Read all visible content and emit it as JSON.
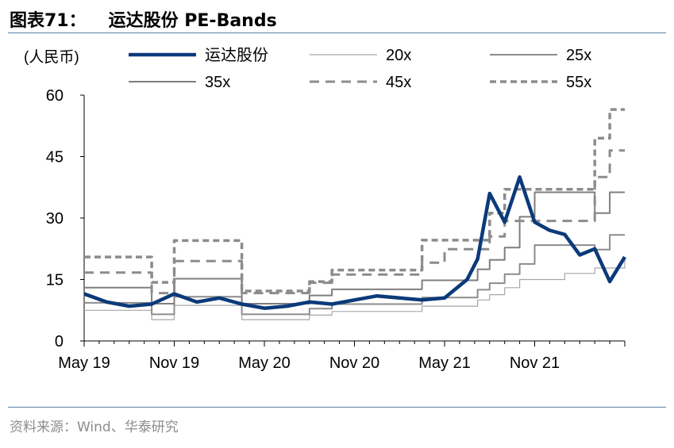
{
  "header": {
    "figure_label": "图表71：",
    "title": "运达股份 PE-Bands"
  },
  "source": "资料来源：Wind、华泰研究",
  "colors": {
    "stock": "#0b3a7a",
    "band_light": "#a6a6a6",
    "band_mid": "#8c8c8c",
    "band_dark": "#7f7f7f",
    "dashed": "#8c8c8c",
    "axis": "#000000",
    "rule": "#5a7fa8"
  },
  "chart_data": {
    "type": "line",
    "unit_label": "(人民币)",
    "y_ticks": [
      "60",
      "45",
      "30",
      "15",
      "0"
    ],
    "ylim": [
      0,
      60
    ],
    "x_ticks": [
      "May 19",
      "Nov 19",
      "May 20",
      "Nov 20",
      "May 21",
      "Nov 21"
    ],
    "xlim": [
      "2019-05",
      "2022-05"
    ],
    "grid": false,
    "legend_position": "top",
    "legend": [
      "运达股份",
      "20x",
      "25x",
      "35x",
      "45x",
      "55x"
    ],
    "x": [
      0,
      1.5,
      3,
      4.5,
      6,
      7.5,
      9,
      10.5,
      12,
      13.5,
      15,
      16.5,
      18,
      19.5,
      21,
      22.5,
      24,
      25.5,
      26.2,
      27,
      28,
      29,
      30,
      31,
      32,
      33,
      34,
      35,
      36
    ],
    "series": [
      {
        "name": "运达股份",
        "values": [
          11.5,
          9.5,
          8.5,
          9,
          11.5,
          9.5,
          10.5,
          9,
          8,
          8.5,
          9.5,
          9,
          10,
          11,
          10.5,
          10,
          10.5,
          15,
          20,
          36,
          29,
          40,
          29,
          27,
          26,
          21,
          22.5,
          14.5,
          20.5
        ]
      },
      {
        "name": "20x",
        "values": [
          7.5,
          7.5,
          7.5,
          5.2,
          8.7,
          8.7,
          8.7,
          5.2,
          5.2,
          5.2,
          6.3,
          7.2,
          7.2,
          7.2,
          7.2,
          8.5,
          8.5,
          8.5,
          10,
          11.3,
          13,
          15,
          15,
          15,
          16.5,
          16.5,
          17.8,
          17.8,
          20.5
        ]
      },
      {
        "name": "25x",
        "values": [
          9.3,
          9.3,
          9.3,
          6.5,
          10.8,
          10.8,
          10.8,
          6.5,
          6.5,
          6.5,
          7.9,
          9,
          9,
          9,
          9,
          10.6,
          10.6,
          10.6,
          12.5,
          14.1,
          16.3,
          18.8,
          23.4,
          23.4,
          23.4,
          23.4,
          22.3,
          25.9,
          25.9
        ]
      },
      {
        "name": "35x",
        "values": [
          13,
          13,
          13,
          9.1,
          15.2,
          15.2,
          15.2,
          9.1,
          9.1,
          9.1,
          11.1,
          12.6,
          12.6,
          12.6,
          12.6,
          14.8,
          14.8,
          14.8,
          17.5,
          19.8,
          22.8,
          30.3,
          36.3,
          36.3,
          36.3,
          36.3,
          31.2,
          36.3,
          36.3
        ]
      },
      {
        "name": "45x",
        "values": [
          16.7,
          16.7,
          16.7,
          11.7,
          19.5,
          19.5,
          19.5,
          11.7,
          11.7,
          11.7,
          14.2,
          16.2,
          16.2,
          16.2,
          16.2,
          19.1,
          22.4,
          22.4,
          22.4,
          25.5,
          29.3,
          29.3,
          29.3,
          29.3,
          29.3,
          29.3,
          40,
          46.5,
          46.5
        ]
      },
      {
        "name": "55x",
        "values": [
          20.5,
          20.5,
          20.5,
          14.3,
          24.5,
          24.5,
          24.5,
          12.2,
          12.2,
          12.2,
          14.5,
          17.3,
          17.3,
          17.3,
          17.3,
          24.6,
          24.6,
          24.6,
          24.6,
          31.2,
          37,
          37,
          37,
          37,
          37,
          37,
          49.5,
          56.5,
          56.5
        ]
      }
    ]
  }
}
